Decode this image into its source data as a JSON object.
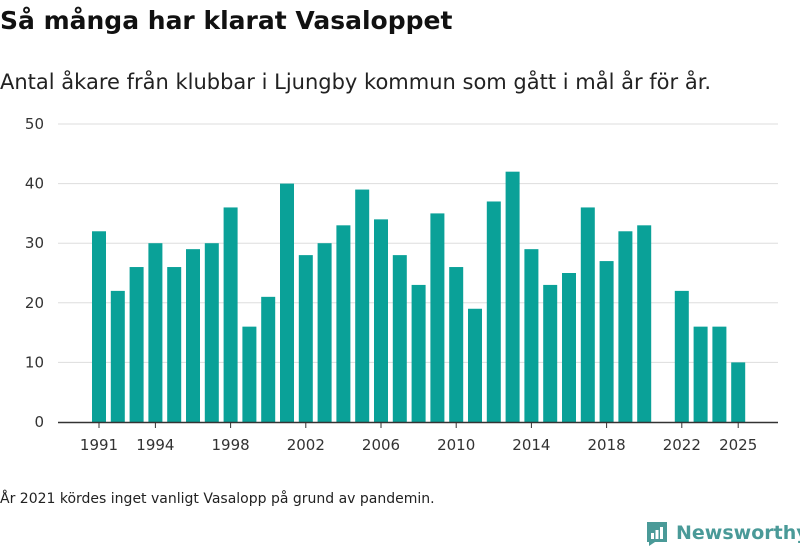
{
  "title": "Så många har klarat Vasaloppet",
  "subtitle": "Antal åkare från klubbar i Ljungby kommun som gått i mål år för år.",
  "note": "År 2021 kördes inget vanligt Vasalopp på grund av pandemin.",
  "brand": {
    "name": "Newsworthy",
    "icon": "newsworthy-logo-icon"
  },
  "colors": {
    "bar": "#0aa198",
    "grid": "#dddddd",
    "axis": "#333333"
  },
  "chart_data": {
    "type": "bar",
    "title": "Så många har klarat Vasaloppet",
    "subtitle": "Antal åkare från klubbar i Ljungby kommun som gått i mål år för år.",
    "xlabel": "",
    "ylabel": "",
    "categories": [
      1991,
      1992,
      1993,
      1994,
      1995,
      1996,
      1997,
      1998,
      1999,
      2000,
      2001,
      2002,
      2003,
      2004,
      2005,
      2006,
      2007,
      2008,
      2009,
      2010,
      2011,
      2012,
      2013,
      2014,
      2015,
      2016,
      2017,
      2018,
      2019,
      2020,
      2021,
      2022,
      2023,
      2024,
      2025
    ],
    "values": [
      32,
      22,
      26,
      30,
      26,
      29,
      30,
      36,
      16,
      21,
      40,
      28,
      30,
      33,
      39,
      34,
      28,
      23,
      35,
      26,
      19,
      37,
      42,
      29,
      23,
      25,
      36,
      27,
      32,
      33,
      null,
      22,
      16,
      16,
      10
    ],
    "xticks": [
      "1991",
      "1994",
      "1998",
      "2002",
      "2006",
      "2010",
      "2014",
      "2018",
      "2022",
      "2025"
    ],
    "yticks": [
      0,
      10,
      20,
      30,
      40,
      50
    ],
    "ylim": [
      0,
      50
    ],
    "grid": true
  }
}
